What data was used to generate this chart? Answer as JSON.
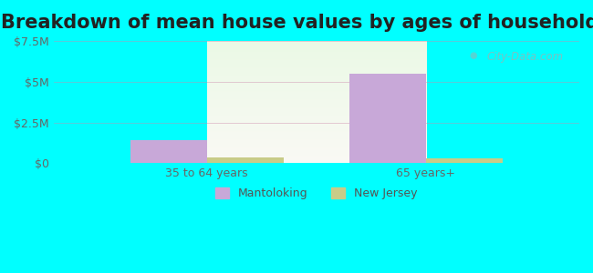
{
  "title": "Breakdown of mean house values by ages of householders",
  "categories": [
    "35 to 64 years",
    "65 years+"
  ],
  "mantoloking_values": [
    1400000,
    5500000
  ],
  "newjersey_values": [
    350000,
    300000
  ],
  "ylim": [
    0,
    7500000
  ],
  "yticks": [
    0,
    2500000,
    5000000,
    7500000
  ],
  "ytick_labels": [
    "$0",
    "$2.5M",
    "$5M",
    "$7.5M"
  ],
  "mantoloking_color": "#c8a8d8",
  "newjersey_color": "#c8cc88",
  "bar_width": 0.35,
  "background_top": "#e8f8e8",
  "background_bottom": "#f0ffe8",
  "legend_labels": [
    "Mantoloking",
    "New Jersey"
  ],
  "watermark": "City-Data.com",
  "title_fontsize": 15,
  "tick_fontsize": 9,
  "legend_fontsize": 9,
  "outer_bg": "#00ffff"
}
